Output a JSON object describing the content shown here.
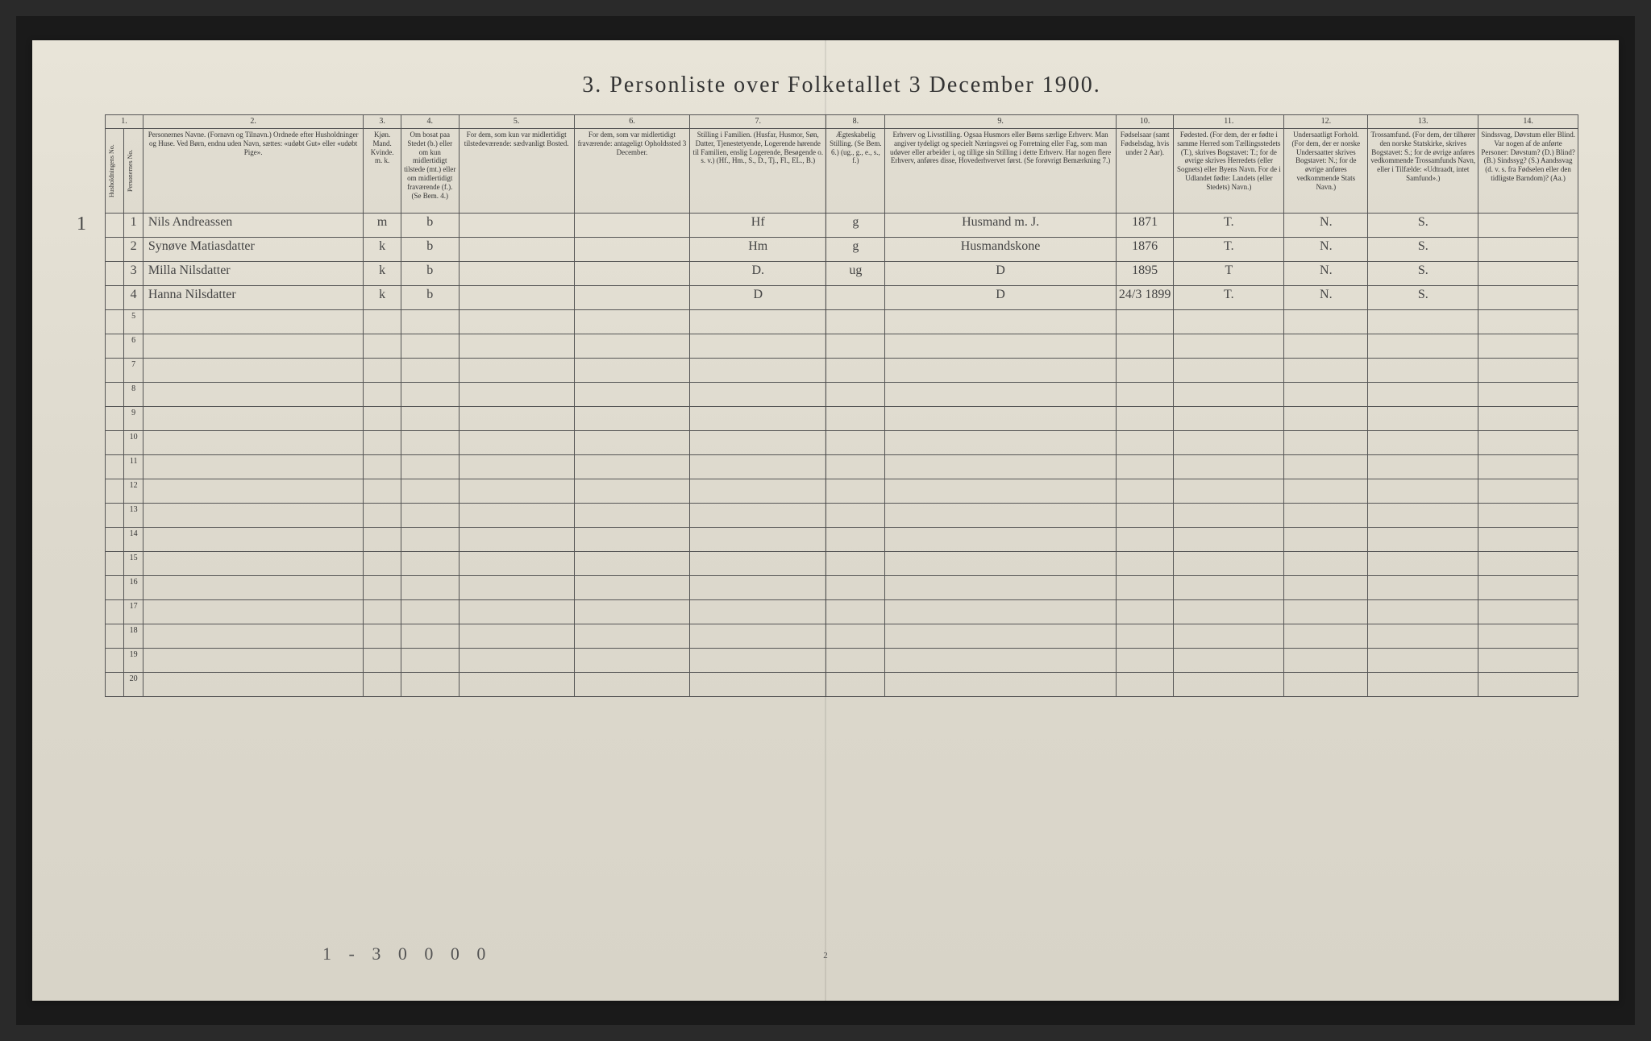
{
  "title": "3.  Personliste over Folketallet 3 December 1900.",
  "columns": {
    "nums": [
      "1.",
      "2.",
      "3.",
      "4.",
      "5.",
      "6.",
      "7.",
      "8.",
      "9.",
      "10.",
      "11.",
      "12.",
      "13.",
      "14."
    ],
    "headers": [
      "Husholdningens No.",
      "Personernes No.",
      "Personernes Navne. (Fornavn og Tilnavn.) Ordnede efter Husholdninger og Huse. Ved Børn, endnu uden Navn, sættes: «udøbt Gut» eller «udøbt Pige».",
      "Kjøn. Mand. Kvinde. m. k.",
      "Om bosat paa Stedet (b.) eller om kun midlertidigt tilstede (mt.) eller om midlertidigt fraværende (f.). (Se Bem. 4.)",
      "For dem, som kun var midlertidigt tilstedeværende: sædvanligt Bosted.",
      "For dem, som var midlertidigt fraværende: antageligt Opholdssted 3 December.",
      "Stilling i Familien. (Husfar, Husmor, Søn, Datter, Tjenestetyende, Logerende hørende til Familien, enslig Logerende, Besøgende o. s. v.) (Hf., Hm., S., D., Tj., Fl., EL., B.)",
      "Ægteskabelig Stilling. (Se Bem. 6.) (ug., g., e., s., f.)",
      "Erhverv og Livsstilling. Ogsaa Husmors eller Børns særlige Erhverv. Man angiver tydeligt og specielt Næringsvei og Forretning eller Fag, som man udøver eller arbeider i, og tillige sin Stilling i dette Erhverv. Har nogen flere Erhverv, anføres disse, Hovederhvervet først. (Se forøvrigt Bemærkning 7.)",
      "Fødselsaar (samt Fødselsdag, hvis under 2 Aar).",
      "Fødested. (For dem, der er fødte i samme Herred som Tællingsstedets (T.), skrives Bogstavet: T.; for de øvrige skrives Herredets (eller Sognets) eller Byens Navn. For de i Udlandet fødte: Landets (eller Stedets) Navn.)",
      "Undersaatligt Forhold. (For dem, der er norske Undersaatter skrives Bogstavet: N.; for de øvrige anføres vedkommende Stats Navn.)",
      "Trossamfund. (For dem, der tilhører den norske Statskirke, skrives Bogstavet: S.; for de øvrige anføres vedkommende Trossamfunds Navn, eller i Tilfælde: «Udtraadt, intet Samfund».)",
      "Sindssvag, Døvstum eller Blind. Var nogen af de anførte Personer: Døvstum? (D.) Blind? (B.) Sindssyg? (S.) Aandssvag (d. v. s. fra Fødselen eller den tidligste Barndom)? (Aa.)"
    ]
  },
  "household_num": "1",
  "rows": [
    {
      "no": "1",
      "name": "Nils Andreassen",
      "sex": "m",
      "res": "b",
      "fam": "Hf",
      "civil": "g",
      "occ": "Husmand m. J.",
      "year": "1871",
      "birthplace": "T.",
      "nat": "N.",
      "rel": "S.",
      "dis": ""
    },
    {
      "no": "2",
      "name": "Synøve Matiasdatter",
      "sex": "k",
      "res": "b",
      "fam": "Hm",
      "civil": "g",
      "occ": "Husmandskone",
      "year": "1876",
      "birthplace": "T.",
      "nat": "N.",
      "rel": "S.",
      "dis": ""
    },
    {
      "no": "3",
      "name": "Milla Nilsdatter",
      "sex": "k",
      "res": "b",
      "fam": "D.",
      "civil": "ug",
      "occ": "D",
      "year": "1895",
      "birthplace": "T",
      "nat": "N.",
      "rel": "S.",
      "dis": ""
    },
    {
      "no": "4",
      "name": "Hanna Nilsdatter",
      "sex": "k",
      "res": "b",
      "fam": "D",
      "civil": "",
      "occ": "D",
      "year": "24/3 1899",
      "birthplace": "T.",
      "nat": "N.",
      "rel": "S.",
      "dis": ""
    }
  ],
  "empty_rows": [
    "5",
    "6",
    "7",
    "8",
    "9",
    "10",
    "11",
    "12",
    "13",
    "14",
    "15",
    "16",
    "17",
    "18",
    "19",
    "20"
  ],
  "bottom_note": "1 - 3   0 0   0 0",
  "page_num": "2",
  "col_widths": [
    "18px",
    "18px",
    "210px",
    "30px",
    "55px",
    "110px",
    "110px",
    "130px",
    "45px",
    "220px",
    "55px",
    "105px",
    "80px",
    "105px",
    "95px"
  ]
}
